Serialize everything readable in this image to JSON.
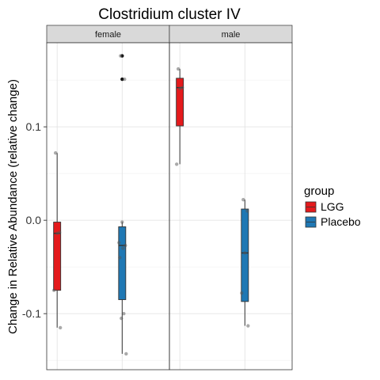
{
  "chart_data": {
    "type": "boxplot",
    "title": "Clostridium cluster IV",
    "xlabel": "",
    "ylabel": "Change in Relative Abundance (relative change)",
    "ylim": [
      -0.16,
      0.19
    ],
    "yticks": [
      {
        "value": 0.1,
        "label": "0.1"
      },
      {
        "value": 0.0,
        "label": "0.0"
      },
      {
        "value": -0.1,
        "label": "-0.1"
      }
    ],
    "grid": true,
    "legend": {
      "title": "group",
      "placement": "right",
      "entries": [
        {
          "name": "LGG",
          "color": "#e41a1c"
        },
        {
          "name": "Placebo",
          "color": "#1f78b4"
        }
      ]
    },
    "facets": [
      {
        "label": "female",
        "boxes": [
          {
            "group": "LGG",
            "min": -0.115,
            "q1": -0.075,
            "median": -0.014,
            "q3": -0.002,
            "max": 0.072,
            "points": [
              0.072,
              -0.013,
              -0.014,
              -0.075,
              -0.115
            ]
          },
          {
            "group": "Placebo",
            "min": -0.143,
            "q1": -0.085,
            "median": -0.027,
            "q3": -0.007,
            "max": -0.002,
            "points": [
              0.176,
              0.151,
              -0.002,
              -0.024,
              -0.027,
              -0.03,
              -0.04,
              -0.1,
              -0.105,
              -0.143
            ]
          }
        ]
      },
      {
        "label": "male",
        "boxes": [
          {
            "group": "LGG",
            "min": 0.06,
            "q1": 0.101,
            "median": 0.142,
            "q3": 0.152,
            "max": 0.162,
            "points": [
              0.162,
              0.142,
              0.141,
              0.06
            ]
          },
          {
            "group": "Placebo",
            "min": -0.113,
            "q1": -0.087,
            "median": -0.035,
            "q3": 0.012,
            "max": 0.022,
            "points": [
              0.022,
              0.01,
              -0.035,
              -0.078,
              -0.113
            ]
          }
        ]
      }
    ]
  }
}
